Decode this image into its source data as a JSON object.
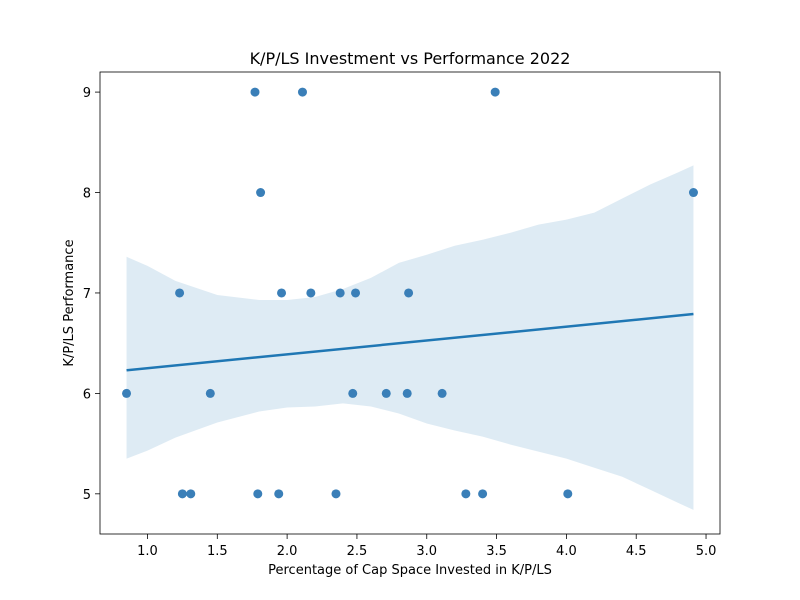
{
  "chart_data": {
    "type": "scatter",
    "title": "K/P/LS Investment vs Performance 2022",
    "xlabel": "Percentage of Cap Space Invested in K/P/LS",
    "ylabel": "K/P/LS Performance",
    "xlim": [
      0.66,
      5.1
    ],
    "ylim": [
      4.6,
      9.2
    ],
    "xticks": [
      1.0,
      1.5,
      2.0,
      2.5,
      3.0,
      3.5,
      4.0,
      4.5,
      5.0
    ],
    "xtick_labels": [
      "1.0",
      "1.5",
      "2.0",
      "2.5",
      "3.0",
      "3.5",
      "4.0",
      "4.5",
      "5.0"
    ],
    "yticks": [
      5,
      6,
      7,
      8,
      9
    ],
    "ytick_labels": [
      "5",
      "6",
      "7",
      "8",
      "9"
    ],
    "grid": false,
    "colors": {
      "point": "#3a7fb8",
      "regression": "#1f77b4",
      "ci_band": "#1f77b4"
    },
    "points": [
      {
        "x": 0.85,
        "y": 6
      },
      {
        "x": 1.23,
        "y": 7
      },
      {
        "x": 1.25,
        "y": 5
      },
      {
        "x": 1.31,
        "y": 5
      },
      {
        "x": 1.45,
        "y": 6
      },
      {
        "x": 1.77,
        "y": 9
      },
      {
        "x": 1.79,
        "y": 5
      },
      {
        "x": 1.81,
        "y": 8
      },
      {
        "x": 1.94,
        "y": 5
      },
      {
        "x": 1.96,
        "y": 7
      },
      {
        "x": 2.11,
        "y": 9
      },
      {
        "x": 2.17,
        "y": 7
      },
      {
        "x": 2.35,
        "y": 5
      },
      {
        "x": 2.38,
        "y": 7
      },
      {
        "x": 2.47,
        "y": 6
      },
      {
        "x": 2.49,
        "y": 7
      },
      {
        "x": 2.71,
        "y": 6
      },
      {
        "x": 2.86,
        "y": 6
      },
      {
        "x": 2.87,
        "y": 7
      },
      {
        "x": 3.11,
        "y": 6
      },
      {
        "x": 3.28,
        "y": 5
      },
      {
        "x": 3.4,
        "y": 5
      },
      {
        "x": 3.49,
        "y": 9
      },
      {
        "x": 4.01,
        "y": 5
      },
      {
        "x": 4.91,
        "y": 8
      }
    ],
    "regression": {
      "x": [
        0.85,
        4.91
      ],
      "y": [
        6.23,
        6.79
      ]
    },
    "confidence_band": {
      "x": [
        0.85,
        1.0,
        1.2,
        1.5,
        1.8,
        2.0,
        2.2,
        2.4,
        2.6,
        2.8,
        3.0,
        3.2,
        3.4,
        3.6,
        3.8,
        4.0,
        4.2,
        4.4,
        4.6,
        4.8,
        4.91
      ],
      "upper": [
        7.36,
        7.27,
        7.12,
        6.98,
        6.93,
        6.93,
        6.96,
        7.04,
        7.15,
        7.3,
        7.38,
        7.47,
        7.53,
        7.6,
        7.68,
        7.73,
        7.8,
        7.94,
        8.08,
        8.2,
        8.27
      ],
      "lower": [
        5.35,
        5.43,
        5.56,
        5.71,
        5.82,
        5.86,
        5.87,
        5.9,
        5.87,
        5.8,
        5.7,
        5.63,
        5.57,
        5.49,
        5.42,
        5.35,
        5.26,
        5.17,
        5.04,
        4.91,
        4.84
      ]
    }
  }
}
